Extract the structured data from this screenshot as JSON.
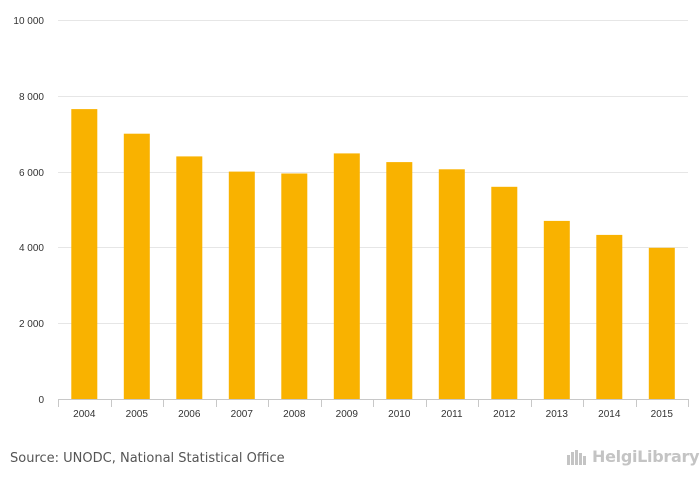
{
  "chart_data": {
    "type": "bar",
    "categories": [
      "2004",
      "2005",
      "2006",
      "2007",
      "2008",
      "2009",
      "2010",
      "2011",
      "2012",
      "2013",
      "2014",
      "2015"
    ],
    "values": [
      7650,
      7000,
      6400,
      6000,
      5950,
      6480,
      6250,
      6060,
      5600,
      4700,
      4330,
      3990
    ],
    "ylim": [
      0,
      10000
    ],
    "yticks": [
      0,
      2000,
      4000,
      6000,
      8000,
      10000
    ],
    "ytick_labels": [
      "0",
      "2 000",
      "4 000",
      "6 000",
      "8 000",
      "10 000"
    ],
    "bar_color": "#f9b200",
    "grid": true,
    "legend": "none",
    "title": "",
    "xlabel": "",
    "ylabel": ""
  },
  "footer": {
    "source": "Source: UNODC, National Statistical Office",
    "logo_text": "HelgiLibrary"
  }
}
